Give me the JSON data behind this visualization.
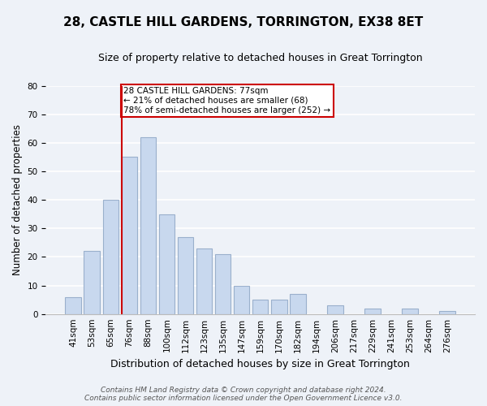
{
  "title": "28, CASTLE HILL GARDENS, TORRINGTON, EX38 8ET",
  "subtitle": "Size of property relative to detached houses in Great Torrington",
  "xlabel": "Distribution of detached houses by size in Great Torrington",
  "ylabel": "Number of detached properties",
  "bar_labels": [
    "41sqm",
    "53sqm",
    "65sqm",
    "76sqm",
    "88sqm",
    "100sqm",
    "112sqm",
    "123sqm",
    "135sqm",
    "147sqm",
    "159sqm",
    "170sqm",
    "182sqm",
    "194sqm",
    "206sqm",
    "217sqm",
    "229sqm",
    "241sqm",
    "253sqm",
    "264sqm",
    "276sqm"
  ],
  "bar_values": [
    6,
    22,
    40,
    55,
    62,
    35,
    27,
    23,
    21,
    10,
    5,
    5,
    7,
    0,
    3,
    0,
    2,
    0,
    2,
    0,
    1
  ],
  "bar_color": "#c8d8ee",
  "bar_edge_color": "#9ab0cc",
  "vline_index": 3,
  "vline_color": "#cc0000",
  "ylim": [
    0,
    80
  ],
  "yticks": [
    0,
    10,
    20,
    30,
    40,
    50,
    60,
    70,
    80
  ],
  "annotation_text": "28 CASTLE HILL GARDENS: 77sqm\n← 21% of detached houses are smaller (68)\n78% of semi-detached houses are larger (252) →",
  "annotation_box_color": "#ffffff",
  "annotation_box_edge": "#cc0000",
  "footer_line1": "Contains HM Land Registry data © Crown copyright and database right 2024.",
  "footer_line2": "Contains public sector information licensed under the Open Government Licence v3.0.",
  "background_color": "#eef2f8",
  "grid_color": "#ffffff",
  "title_fontsize": 11,
  "subtitle_fontsize": 9,
  "xlabel_fontsize": 9,
  "ylabel_fontsize": 8.5,
  "tick_fontsize": 7.5,
  "footer_fontsize": 6.5
}
